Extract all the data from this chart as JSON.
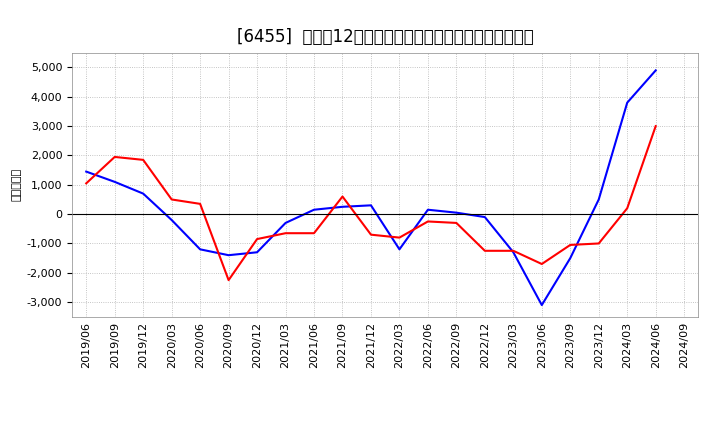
{
  "title": "[6455]  利益だ12か月移動合計の対前年同期増減額の推移",
  "ylabel": "（百万円）",
  "x_labels": [
    "2019/06",
    "2019/09",
    "2019/12",
    "2020/03",
    "2020/06",
    "2020/09",
    "2020/12",
    "2021/03",
    "2021/06",
    "2021/09",
    "2021/12",
    "2022/03",
    "2022/06",
    "2022/09",
    "2022/12",
    "2023/03",
    "2023/06",
    "2023/09",
    "2023/12",
    "2024/03",
    "2024/06",
    "2024/09"
  ],
  "keijo_rieki": [
    1450,
    1100,
    700,
    -200,
    -1200,
    -1400,
    -1300,
    -300,
    150,
    250,
    300,
    -1200,
    150,
    50,
    -100,
    -1300,
    -3100,
    -1500,
    500,
    3800,
    4900,
    null
  ],
  "touki_jun_rieki": [
    1050,
    1950,
    1850,
    500,
    350,
    -2250,
    -850,
    -650,
    -650,
    600,
    -700,
    -800,
    -250,
    -300,
    -1250,
    -1250,
    -1700,
    -1050,
    -1000,
    200,
    3000,
    null
  ],
  "ylim": [
    -3500,
    5500
  ],
  "yticks": [
    -3000,
    -2000,
    -1000,
    0,
    1000,
    2000,
    3000,
    4000,
    5000
  ],
  "keijo_color": "#0000ff",
  "touki_color": "#ff0000",
  "bg_color": "#ffffff",
  "grid_color": "#aaaaaa",
  "title_fontsize": 12,
  "axis_fontsize": 8,
  "legend_fontsize": 10
}
